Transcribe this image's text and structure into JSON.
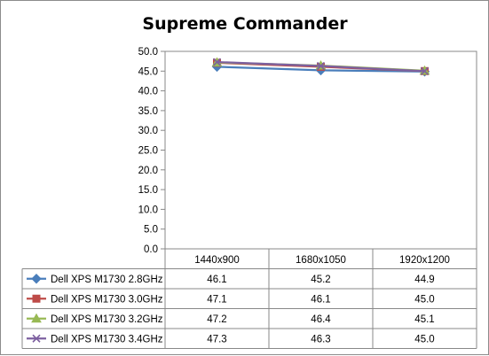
{
  "chart_data": {
    "type": "line",
    "title": "Supreme Commander",
    "categories": [
      "1440x900",
      "1680x1050",
      "1920x1200"
    ],
    "ylim": [
      0,
      50
    ],
    "y_ticks": [
      "0.0",
      "5.0",
      "10.0",
      "15.0",
      "20.0",
      "25.0",
      "30.0",
      "35.0",
      "40.0",
      "45.0",
      "50.0"
    ],
    "grid": false,
    "legend": "data-table-left",
    "series": [
      {
        "name": "Dell XPS M1730 2.8GHz",
        "values": [
          46.1,
          45.2,
          44.9
        ],
        "labels": [
          "46.1",
          "45.2",
          "44.9"
        ],
        "color": "#4a7ebb",
        "marker": "diamond"
      },
      {
        "name": "Dell XPS M1730 3.0GHz",
        "values": [
          47.1,
          46.1,
          45.0
        ],
        "labels": [
          "47.1",
          "46.1",
          "45.0"
        ],
        "color": "#be4b48",
        "marker": "square"
      },
      {
        "name": "Dell XPS M1730 3.2GHz",
        "values": [
          47.2,
          46.4,
          45.1
        ],
        "labels": [
          "47.2",
          "46.4",
          "45.1"
        ],
        "color": "#98b954",
        "marker": "triangle"
      },
      {
        "name": "Dell XPS M1730 3.4GHz",
        "values": [
          47.3,
          46.3,
          45.0
        ],
        "labels": [
          "47.3",
          "46.3",
          "45.0"
        ],
        "color": "#7d60a0",
        "marker": "x"
      }
    ]
  }
}
